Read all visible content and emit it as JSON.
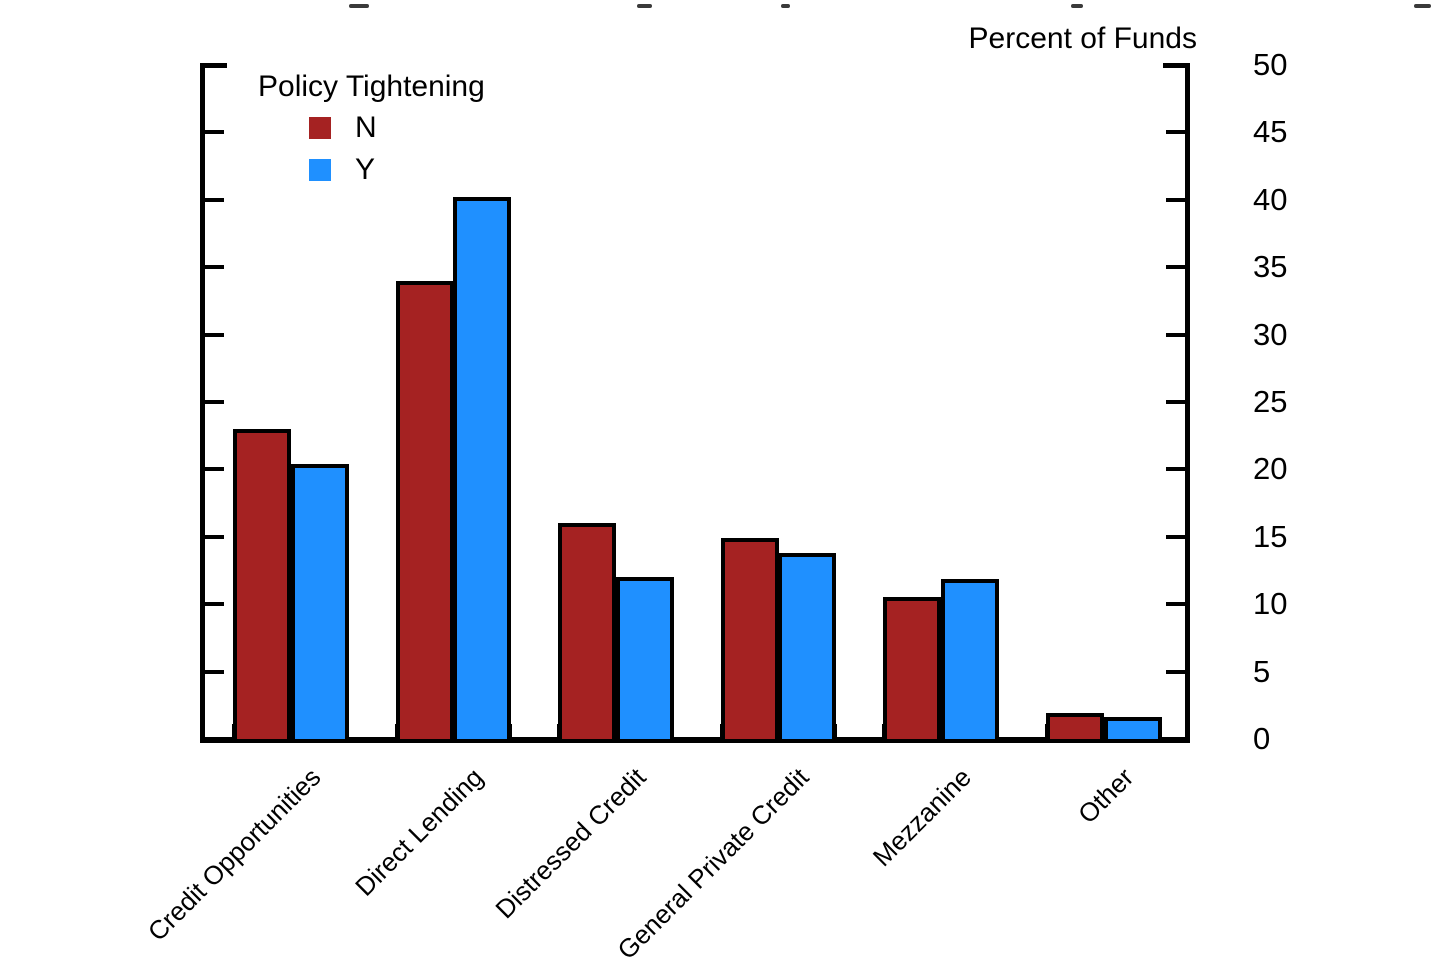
{
  "axis_title_right": "Percent of Funds",
  "legend": {
    "title": "Policy Tightening",
    "items": [
      {
        "label": "N",
        "color": "#a52222"
      },
      {
        "label": "Y",
        "color": "#1f90ff"
      }
    ]
  },
  "chart_data": {
    "type": "bar",
    "title": "",
    "ylabel": "Percent of Funds",
    "xlabel": "",
    "categories": [
      "Credit Opportunities",
      "Direct Lending",
      "Distressed Credit",
      "General Private Credit",
      "Mezzanine",
      "Other"
    ],
    "series": [
      {
        "name": "N",
        "color": "#a52222",
        "values": [
          23.0,
          34.0,
          16.0,
          14.9,
          10.5,
          1.9
        ]
      },
      {
        "name": "Y",
        "color": "#1f90ff",
        "values": [
          20.4,
          40.2,
          12.0,
          13.8,
          11.9,
          1.6
        ]
      }
    ],
    "ylim": [
      0,
      50
    ],
    "yticks": [
      0,
      5,
      10,
      15,
      20,
      25,
      30,
      35,
      40,
      45,
      50
    ],
    "grid": false,
    "legend_title": "Policy Tightening",
    "legend_position": "top-left",
    "bar_outline_color": "#000000",
    "category_label_rotation_deg": 45
  }
}
